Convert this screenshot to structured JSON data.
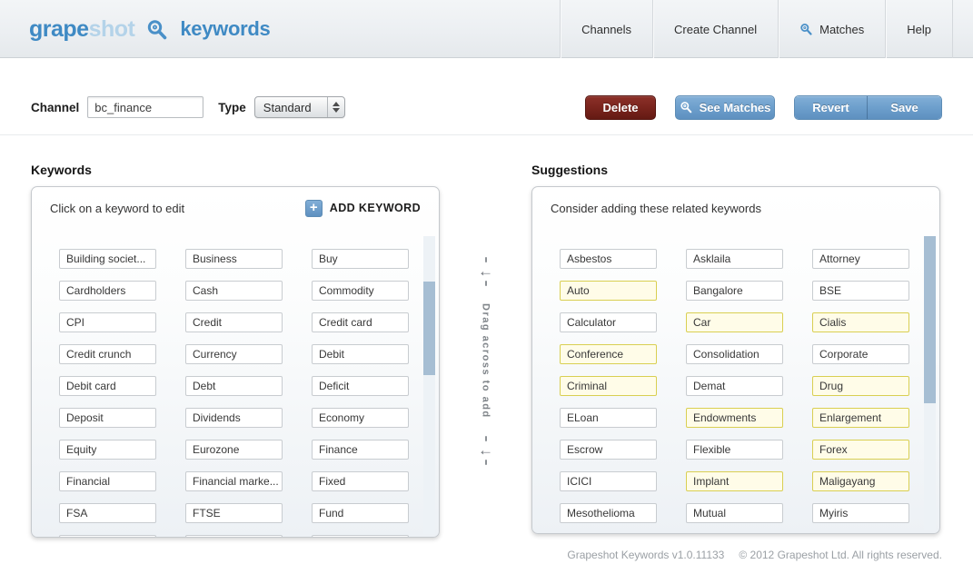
{
  "brand": {
    "name_primary": "grape",
    "name_secondary": "shot",
    "product": "keywords"
  },
  "nav": {
    "items": [
      {
        "label": "Channels"
      },
      {
        "label": "Create Channel"
      },
      {
        "label": "Matches",
        "icon": "search"
      },
      {
        "label": "Help"
      }
    ]
  },
  "toolbar": {
    "channel_label": "Channel",
    "channel_value": "bc_finance",
    "type_label": "Type",
    "type_value": "Standard",
    "delete_label": "Delete",
    "see_matches_label": "See Matches",
    "revert_label": "Revert",
    "save_label": "Save"
  },
  "keywords_panel": {
    "title": "Keywords",
    "hint": "Click on a keyword to edit",
    "add_button_label": "ADD KEYWORD",
    "items": [
      "Building societ...",
      "Business",
      "Buy",
      "Cardholders",
      "Cash",
      "Commodity",
      "CPI",
      "Credit",
      "Credit card",
      "Credit crunch",
      "Currency",
      "Debit",
      "Debit card",
      "Debt",
      "Deficit",
      "Deposit",
      "Dividends",
      "Economy",
      "Equity",
      "Eurozone",
      "Finance",
      "Financial",
      "Financial marke...",
      "Fixed",
      "FSA",
      "FTSE",
      "Fund"
    ]
  },
  "drag_divider": {
    "label": "Drag across to add"
  },
  "suggestions_panel": {
    "title": "Suggestions",
    "hint": "Consider adding these related keywords",
    "items": [
      {
        "label": "Asbestos",
        "highlighted": false
      },
      {
        "label": "Asklaila",
        "highlighted": false
      },
      {
        "label": "Attorney",
        "highlighted": false
      },
      {
        "label": "Auto",
        "highlighted": true
      },
      {
        "label": "Bangalore",
        "highlighted": false
      },
      {
        "label": "BSE",
        "highlighted": false
      },
      {
        "label": "Calculator",
        "highlighted": false
      },
      {
        "label": "Car",
        "highlighted": true
      },
      {
        "label": "Cialis",
        "highlighted": true
      },
      {
        "label": "Conference",
        "highlighted": true
      },
      {
        "label": "Consolidation",
        "highlighted": false
      },
      {
        "label": "Corporate",
        "highlighted": false
      },
      {
        "label": "Criminal",
        "highlighted": true
      },
      {
        "label": "Demat",
        "highlighted": false
      },
      {
        "label": "Drug",
        "highlighted": true
      },
      {
        "label": "ELoan",
        "highlighted": false
      },
      {
        "label": "Endowments",
        "highlighted": true
      },
      {
        "label": "Enlargement",
        "highlighted": true
      },
      {
        "label": "Escrow",
        "highlighted": false
      },
      {
        "label": "Flexible",
        "highlighted": false
      },
      {
        "label": "Forex",
        "highlighted": true
      },
      {
        "label": "ICICI",
        "highlighted": false
      },
      {
        "label": "Implant",
        "highlighted": true
      },
      {
        "label": "Maligayang",
        "highlighted": true
      },
      {
        "label": "Mesothelioma",
        "highlighted": false
      },
      {
        "label": "Mutual",
        "highlighted": false
      },
      {
        "label": "Myiris",
        "highlighted": false
      }
    ]
  },
  "footer": {
    "version": "Grapeshot Keywords v1.0.11133",
    "copyright": "© 2012 Grapeshot Ltd. All rights reserved."
  },
  "colors": {
    "accent_blue": "#3f8ac4",
    "button_blue": "#6d9fcc",
    "delete_red": "#7a241d",
    "suggestion_highlight_bg": "#fffce8",
    "suggestion_highlight_border": "#d9cf52",
    "scrollbar_thumb": "#a6bed3"
  }
}
